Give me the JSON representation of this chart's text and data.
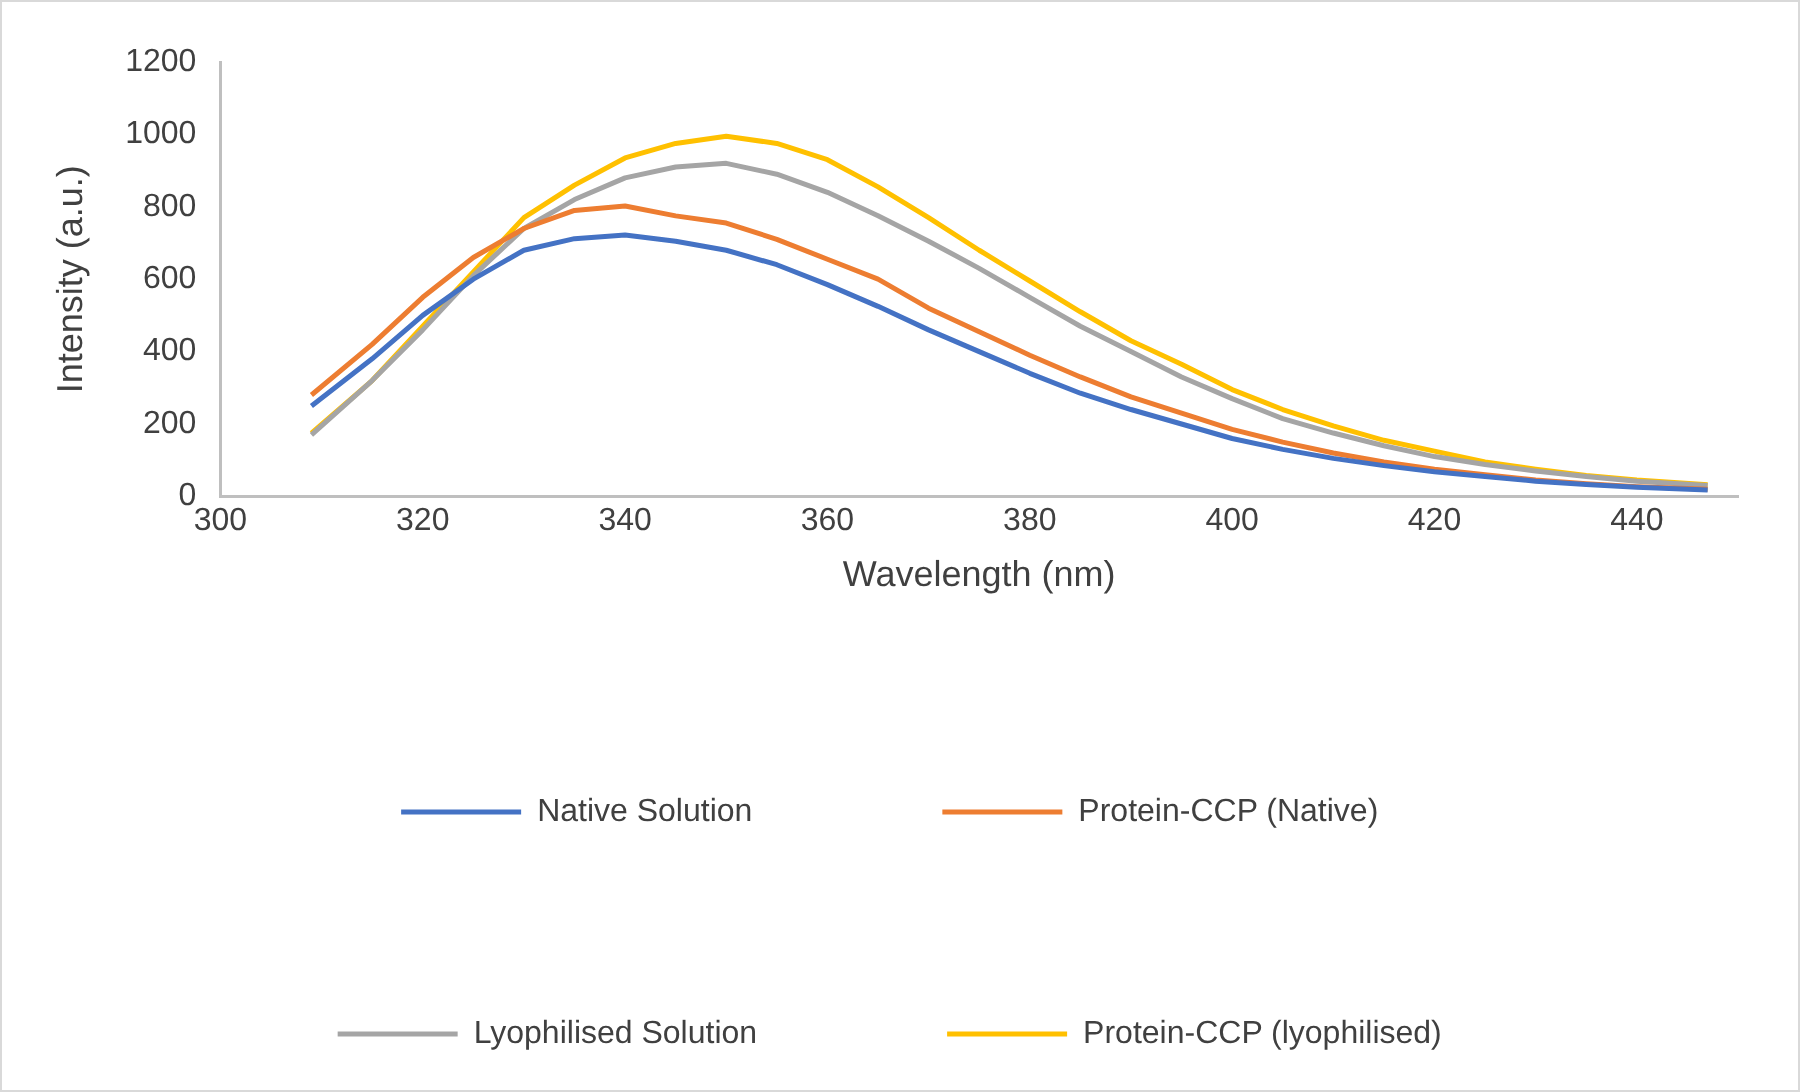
{
  "chart_data": {
    "type": "line",
    "xlabel": "Wavelength (nm)",
    "ylabel": "Intensity (a.u.)",
    "xlim": [
      300,
      450
    ],
    "xticks": [
      300,
      320,
      340,
      360,
      380,
      400,
      420,
      440
    ],
    "ylim": [
      0,
      1200
    ],
    "yticks": [
      0,
      200,
      400,
      600,
      800,
      1000,
      1200
    ],
    "grid": false,
    "legend": "bottom",
    "marker": "none",
    "line_style": "solid",
    "x": [
      309,
      315,
      320,
      325,
      330,
      335,
      340,
      345,
      350,
      355,
      360,
      365,
      370,
      375,
      380,
      385,
      390,
      395,
      400,
      405,
      410,
      415,
      420,
      425,
      430,
      435,
      440,
      447
    ],
    "series": [
      {
        "name": "Native Solution",
        "color": "#4472c4",
        "values": [
          250,
          380,
          500,
          600,
          680,
          712,
          722,
          705,
          680,
          640,
          585,
          525,
          460,
          400,
          340,
          285,
          240,
          200,
          160,
          130,
          105,
          85,
          68,
          55,
          42,
          33,
          25,
          18
        ]
      },
      {
        "name": "Protein-CCP (Native)",
        "color": "#ed7d31",
        "values": [
          280,
          420,
          550,
          660,
          740,
          790,
          802,
          775,
          755,
          710,
          655,
          600,
          520,
          455,
          390,
          330,
          275,
          230,
          185,
          150,
          120,
          95,
          75,
          60,
          45,
          35,
          27,
          20
        ]
      },
      {
        "name": "Lyophilised Solution",
        "color": "#a5a5a5",
        "values": [
          170,
          320,
          460,
          610,
          740,
          820,
          880,
          910,
          920,
          890,
          840,
          775,
          705,
          630,
          550,
          470,
          400,
          330,
          270,
          215,
          175,
          140,
          110,
          88,
          70,
          55,
          42,
          30
        ]
      },
      {
        "name": "Protein-CCP (lyophilised)",
        "color": "#ffc000",
        "values": [
          175,
          320,
          470,
          620,
          770,
          860,
          935,
          975,
          995,
          975,
          930,
          855,
          770,
          680,
          595,
          510,
          430,
          365,
          295,
          240,
          195,
          155,
          125,
          95,
          75,
          58,
          45,
          32
        ]
      }
    ]
  }
}
